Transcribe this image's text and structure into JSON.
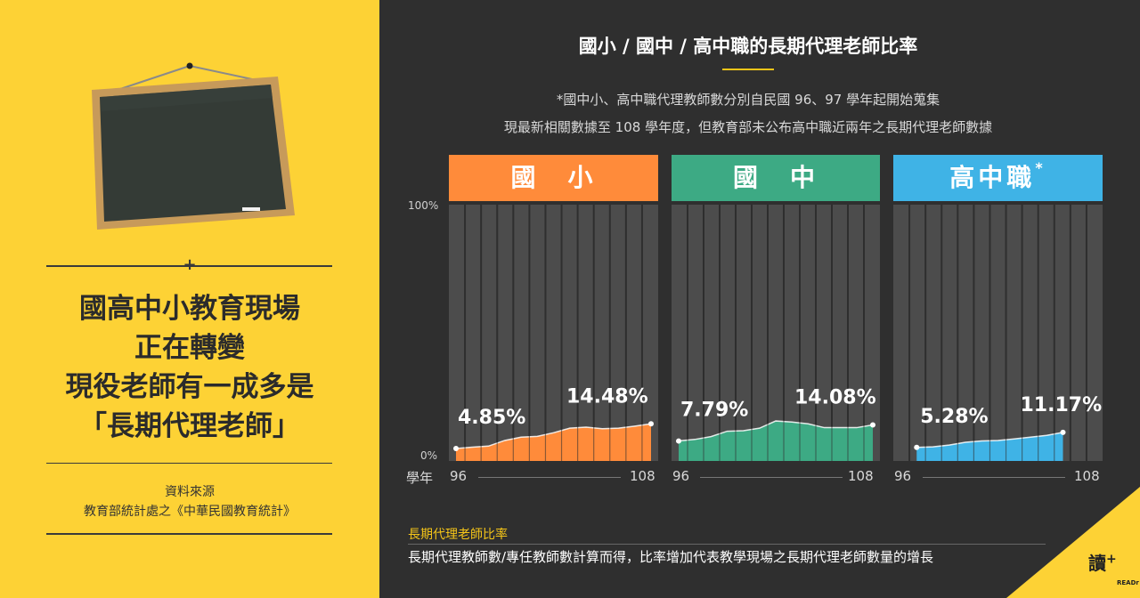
{
  "left_panel": {
    "headline": [
      "國高中小教育現場",
      "正在轉變",
      "現役老師有一成多是",
      "「長期代理老師」"
    ],
    "source_label": "資料來源",
    "source_value": "教育部統計處之《中華民國教育統計》"
  },
  "title": "國小 / 國中 / 高中職的長期代理老師比率",
  "notes": [
    "*國中小、高中職代理教師數分別自民國 96、97 學年起開始蒐集",
    "現最新相關數據至 108 學年度，但教育部未公布高中職近兩年之長期代理老師數據"
  ],
  "colors": {
    "background": "#2f2f2f",
    "panel_yellow": "#fdd235",
    "elementary": "#ff8b3a",
    "junior_high": "#3daa84",
    "senior_high": "#3fb3e6",
    "accent": "#f5c518"
  },
  "chart_data": {
    "type": "area",
    "ylim": [
      0,
      100
    ],
    "y_ticks": [
      "100%",
      "0%"
    ],
    "xlabel": "學年",
    "panels": [
      {
        "name": "國小",
        "header": "國　小",
        "color": "#ff8b3a",
        "x_range": [
          96,
          108
        ],
        "x_ticks": [
          "96",
          "108"
        ],
        "x": [
          96,
          97,
          98,
          99,
          100,
          101,
          102,
          103,
          104,
          105,
          106,
          107,
          108
        ],
        "values": [
          4.85,
          5.4,
          5.8,
          8.0,
          9.3,
          9.6,
          11.0,
          12.8,
          13.2,
          12.6,
          12.8,
          13.6,
          14.48
        ],
        "first_label": "4.85%",
        "last_label": "14.48%"
      },
      {
        "name": "國中",
        "header": "國　中",
        "color": "#3daa84",
        "x_range": [
          96,
          108
        ],
        "x_ticks": [
          "96",
          "108"
        ],
        "x": [
          96,
          97,
          98,
          99,
          100,
          101,
          102,
          103,
          104,
          105,
          106,
          107,
          108
        ],
        "values": [
          7.79,
          8.4,
          9.5,
          11.6,
          11.8,
          12.8,
          15.6,
          15.2,
          14.5,
          13.0,
          13.0,
          13.0,
          14.08
        ],
        "first_label": "7.79%",
        "last_label": "14.08%"
      },
      {
        "name": "高中職",
        "header": "高中職",
        "header_mark": "*",
        "color": "#3fb3e6",
        "x_range": [
          97,
          108
        ],
        "x_ticks": [
          "96",
          "108"
        ],
        "x": [
          97,
          98,
          99,
          100,
          101,
          102,
          103,
          104,
          105,
          106
        ],
        "values": [
          5.28,
          5.5,
          6.2,
          7.3,
          7.8,
          8.0,
          8.6,
          9.3,
          10.0,
          11.17
        ],
        "first_label": "5.28%",
        "last_label": "11.17%"
      }
    ]
  },
  "bottom": {
    "title": "長期代理老師比率",
    "description": "長期代理教師數/專任教師數計算而得，比率增加代表教學現場之長期代理老師數量的增長"
  },
  "logo": {
    "text": "讀",
    "mark": "+",
    "sub": "READr"
  }
}
